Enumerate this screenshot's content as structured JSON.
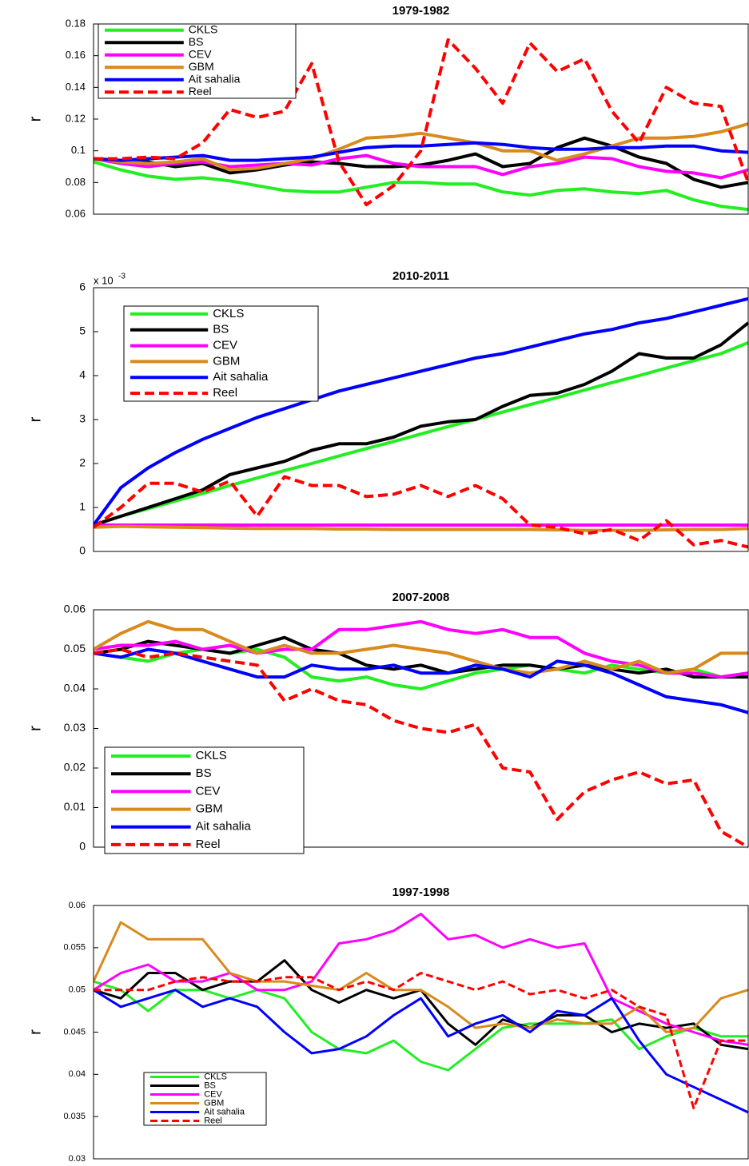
{
  "chart_data": [
    {
      "type": "line",
      "title": "1979-1982",
      "ylabel": "r",
      "ylim": [
        0.06,
        0.18
      ],
      "yticks": [
        0.06,
        0.08,
        0.1,
        0.12,
        0.14,
        0.16,
        0.18
      ],
      "legend": "upper left",
      "series": [
        {
          "name": "CKLS",
          "color": "#22ee22",
          "values": [
            0.093,
            0.088,
            0.084,
            0.082,
            0.083,
            0.081,
            0.078,
            0.075,
            0.074,
            0.074,
            0.077,
            0.08,
            0.08,
            0.079,
            0.079,
            0.074,
            0.072,
            0.075,
            0.076,
            0.074,
            0.073,
            0.075,
            0.069,
            0.065,
            0.063
          ]
        },
        {
          "name": "BS",
          "color": "#000000",
          "values": [
            0.095,
            0.093,
            0.093,
            0.09,
            0.092,
            0.086,
            0.088,
            0.091,
            0.093,
            0.092,
            0.09,
            0.09,
            0.091,
            0.094,
            0.098,
            0.09,
            0.092,
            0.102,
            0.108,
            0.103,
            0.096,
            0.092,
            0.082,
            0.077,
            0.08
          ]
        },
        {
          "name": "CEV",
          "color": "#ff00ff",
          "values": [
            0.095,
            0.092,
            0.09,
            0.092,
            0.093,
            0.09,
            0.091,
            0.092,
            0.091,
            0.095,
            0.097,
            0.092,
            0.09,
            0.09,
            0.09,
            0.085,
            0.09,
            0.092,
            0.096,
            0.095,
            0.09,
            0.087,
            0.086,
            0.083,
            0.088
          ]
        },
        {
          "name": "GBM",
          "color": "#d98a1c",
          "values": [
            0.095,
            0.093,
            0.092,
            0.093,
            0.095,
            0.088,
            0.089,
            0.092,
            0.095,
            0.101,
            0.108,
            0.109,
            0.111,
            0.108,
            0.105,
            0.1,
            0.1,
            0.094,
            0.098,
            0.103,
            0.108,
            0.108,
            0.109,
            0.112,
            0.117
          ]
        },
        {
          "name": "Ait sahalia",
          "color": "#0000ff",
          "values": [
            0.095,
            0.094,
            0.095,
            0.096,
            0.097,
            0.094,
            0.094,
            0.095,
            0.096,
            0.099,
            0.102,
            0.103,
            0.103,
            0.104,
            0.105,
            0.104,
            0.102,
            0.101,
            0.101,
            0.102,
            0.102,
            0.103,
            0.103,
            0.1,
            0.099
          ]
        },
        {
          "name": "Reel",
          "color": "#ff0000",
          "linestyle": "dashed",
          "values": [
            0.095,
            0.095,
            0.096,
            0.095,
            0.105,
            0.126,
            0.121,
            0.125,
            0.155,
            0.093,
            0.066,
            0.078,
            0.1,
            0.17,
            0.152,
            0.13,
            0.168,
            0.15,
            0.158,
            0.125,
            0.105,
            0.14,
            0.13,
            0.128,
            0.08
          ]
        }
      ]
    },
    {
      "type": "line",
      "title": "2010-2011",
      "ylabel": "r",
      "y_scale_label": "x 10",
      "y_scale_exponent": "-3",
      "ylim": [
        0,
        6
      ],
      "yticks": [
        0,
        1,
        2,
        3,
        4,
        5,
        6
      ],
      "legend": "upper left",
      "series": [
        {
          "name": "CKLS",
          "color": "#22ee22",
          "values": [
            0.6,
            0.8,
            0.97,
            1.15,
            1.32,
            1.5,
            1.67,
            1.84,
            2.0,
            2.17,
            2.34,
            2.5,
            2.67,
            2.84,
            3.0,
            3.17,
            3.34,
            3.5,
            3.67,
            3.84,
            4.0,
            4.17,
            4.34,
            4.5,
            4.75
          ]
        },
        {
          "name": "BS",
          "color": "#000000",
          "values": [
            0.6,
            0.8,
            1.0,
            1.2,
            1.4,
            1.75,
            1.9,
            2.05,
            2.3,
            2.45,
            2.45,
            2.6,
            2.85,
            2.95,
            3.0,
            3.3,
            3.55,
            3.6,
            3.8,
            4.1,
            4.5,
            4.4,
            4.4,
            4.7,
            5.2
          ]
        },
        {
          "name": "CEV",
          "color": "#ff00ff",
          "values": [
            0.6,
            0.6,
            0.6,
            0.6,
            0.6,
            0.6,
            0.6,
            0.6,
            0.6,
            0.6,
            0.6,
            0.6,
            0.6,
            0.6,
            0.6,
            0.6,
            0.6,
            0.6,
            0.6,
            0.6,
            0.6,
            0.6,
            0.6,
            0.6,
            0.6
          ]
        },
        {
          "name": "GBM",
          "color": "#d98a1c",
          "values": [
            0.55,
            0.57,
            0.56,
            0.55,
            0.54,
            0.53,
            0.52,
            0.52,
            0.52,
            0.51,
            0.51,
            0.5,
            0.5,
            0.5,
            0.5,
            0.5,
            0.5,
            0.49,
            0.48,
            0.48,
            0.48,
            0.49,
            0.5,
            0.5,
            0.52
          ]
        },
        {
          "name": "Ait sahalia",
          "color": "#0000ff",
          "values": [
            0.6,
            1.45,
            1.9,
            2.25,
            2.55,
            2.8,
            3.05,
            3.25,
            3.45,
            3.65,
            3.8,
            3.95,
            4.1,
            4.25,
            4.4,
            4.5,
            4.65,
            4.8,
            4.95,
            5.05,
            5.2,
            5.3,
            5.45,
            5.6,
            5.75
          ]
        },
        {
          "name": "Reel",
          "color": "#ff0000",
          "linestyle": "dashed",
          "values": [
            0.55,
            1.0,
            1.55,
            1.55,
            1.35,
            1.6,
            0.8,
            1.7,
            1.5,
            1.5,
            1.25,
            1.3,
            1.5,
            1.25,
            1.5,
            1.2,
            0.6,
            0.55,
            0.4,
            0.5,
            0.25,
            0.7,
            0.15,
            0.25,
            0.1
          ]
        }
      ]
    },
    {
      "type": "line",
      "title": "2007-2008",
      "ylabel": "r",
      "ylim": [
        0,
        0.06
      ],
      "yticks": [
        0,
        0.01,
        0.02,
        0.03,
        0.04,
        0.05,
        0.06
      ],
      "legend": "lower left",
      "series": [
        {
          "name": "CKLS",
          "color": "#22ee22",
          "values": [
            0.049,
            0.048,
            0.047,
            0.049,
            0.05,
            0.049,
            0.05,
            0.048,
            0.043,
            0.042,
            0.043,
            0.041,
            0.04,
            0.042,
            0.044,
            0.045,
            0.046,
            0.045,
            0.044,
            0.046,
            0.045,
            0.044,
            0.045,
            0.043,
            0.044
          ]
        },
        {
          "name": "BS",
          "color": "#000000",
          "values": [
            0.049,
            0.05,
            0.052,
            0.051,
            0.05,
            0.049,
            0.051,
            0.053,
            0.05,
            0.049,
            0.046,
            0.045,
            0.046,
            0.044,
            0.045,
            0.046,
            0.046,
            0.045,
            0.046,
            0.045,
            0.044,
            0.045,
            0.043,
            0.043,
            0.043
          ]
        },
        {
          "name": "CEV",
          "color": "#ff00ff",
          "values": [
            0.05,
            0.051,
            0.051,
            0.052,
            0.05,
            0.051,
            0.049,
            0.05,
            0.05,
            0.055,
            0.055,
            0.056,
            0.057,
            0.055,
            0.054,
            0.055,
            0.053,
            0.053,
            0.049,
            0.047,
            0.046,
            0.044,
            0.044,
            0.043,
            0.044
          ]
        },
        {
          "name": "GBM",
          "color": "#d98a1c",
          "values": [
            0.05,
            0.054,
            0.057,
            0.055,
            0.055,
            0.052,
            0.049,
            0.051,
            0.049,
            0.049,
            0.05,
            0.051,
            0.05,
            0.049,
            0.047,
            0.045,
            0.044,
            0.045,
            0.047,
            0.045,
            0.047,
            0.044,
            0.045,
            0.049,
            0.049
          ]
        },
        {
          "name": "Ait sahalia",
          "color": "#0000ff",
          "values": [
            0.049,
            0.048,
            0.05,
            0.049,
            0.047,
            0.045,
            0.043,
            0.043,
            0.046,
            0.045,
            0.045,
            0.046,
            0.044,
            0.044,
            0.046,
            0.045,
            0.043,
            0.047,
            0.046,
            0.044,
            0.041,
            0.038,
            0.037,
            0.036,
            0.034
          ]
        },
        {
          "name": "Reel",
          "color": "#ff0000",
          "linestyle": "dashed",
          "values": [
            0.049,
            0.05,
            0.048,
            0.049,
            0.048,
            0.047,
            0.046,
            0.037,
            0.04,
            0.037,
            0.036,
            0.032,
            0.03,
            0.029,
            0.031,
            0.02,
            0.019,
            0.007,
            0.014,
            0.017,
            0.019,
            0.016,
            0.017,
            0.004,
            0.0
          ]
        }
      ]
    },
    {
      "type": "line",
      "title": "1997-1998",
      "ylabel": "r",
      "ylim": [
        0.03,
        0.06
      ],
      "yticks": [
        0.03,
        0.035,
        0.04,
        0.045,
        0.05,
        0.055,
        0.06
      ],
      "legend": "lower left",
      "series": [
        {
          "name": "CKLS",
          "color": "#22ee22",
          "values": [
            0.051,
            0.05,
            0.0475,
            0.05,
            0.05,
            0.049,
            0.05,
            0.049,
            0.045,
            0.043,
            0.0425,
            0.044,
            0.0415,
            0.0405,
            0.043,
            0.0455,
            0.046,
            0.046,
            0.046,
            0.0465,
            0.043,
            0.0445,
            0.0455,
            0.0445,
            0.0445
          ]
        },
        {
          "name": "BS",
          "color": "#000000",
          "values": [
            0.05,
            0.049,
            0.052,
            0.052,
            0.05,
            0.051,
            0.051,
            0.0535,
            0.05,
            0.0485,
            0.05,
            0.049,
            0.05,
            0.046,
            0.0435,
            0.0465,
            0.0455,
            0.047,
            0.047,
            0.045,
            0.046,
            0.0455,
            0.046,
            0.0435,
            0.043
          ]
        },
        {
          "name": "CEV",
          "color": "#ff00ff",
          "values": [
            0.05,
            0.052,
            0.053,
            0.051,
            0.051,
            0.052,
            0.05,
            0.05,
            0.051,
            0.0555,
            0.056,
            0.057,
            0.059,
            0.056,
            0.0565,
            0.055,
            0.056,
            0.055,
            0.0555,
            0.049,
            0.0475,
            0.046,
            0.045,
            0.044,
            0.0435
          ]
        },
        {
          "name": "GBM",
          "color": "#d98a1c",
          "values": [
            0.051,
            0.058,
            0.056,
            0.056,
            0.056,
            0.052,
            0.051,
            0.051,
            0.0505,
            0.05,
            0.052,
            0.05,
            0.05,
            0.048,
            0.0455,
            0.046,
            0.0455,
            0.0465,
            0.046,
            0.046,
            0.048,
            0.045,
            0.0455,
            0.049,
            0.05
          ]
        },
        {
          "name": "Ait sahalia",
          "color": "#0000ff",
          "values": [
            0.05,
            0.048,
            0.049,
            0.05,
            0.048,
            0.049,
            0.048,
            0.045,
            0.0425,
            0.043,
            0.0445,
            0.047,
            0.049,
            0.0445,
            0.046,
            0.047,
            0.045,
            0.0475,
            0.047,
            0.049,
            0.044,
            0.04,
            0.0385,
            0.037,
            0.0355
          ]
        },
        {
          "name": "Reel",
          "color": "#ff0000",
          "linestyle": "dashed",
          "values": [
            0.05,
            0.05,
            0.05,
            0.051,
            0.0515,
            0.051,
            0.051,
            0.0515,
            0.0515,
            0.05,
            0.051,
            0.05,
            0.052,
            0.051,
            0.05,
            0.051,
            0.0495,
            0.05,
            0.049,
            0.05,
            0.048,
            0.047,
            0.036,
            0.044,
            0.044
          ]
        }
      ]
    }
  ]
}
